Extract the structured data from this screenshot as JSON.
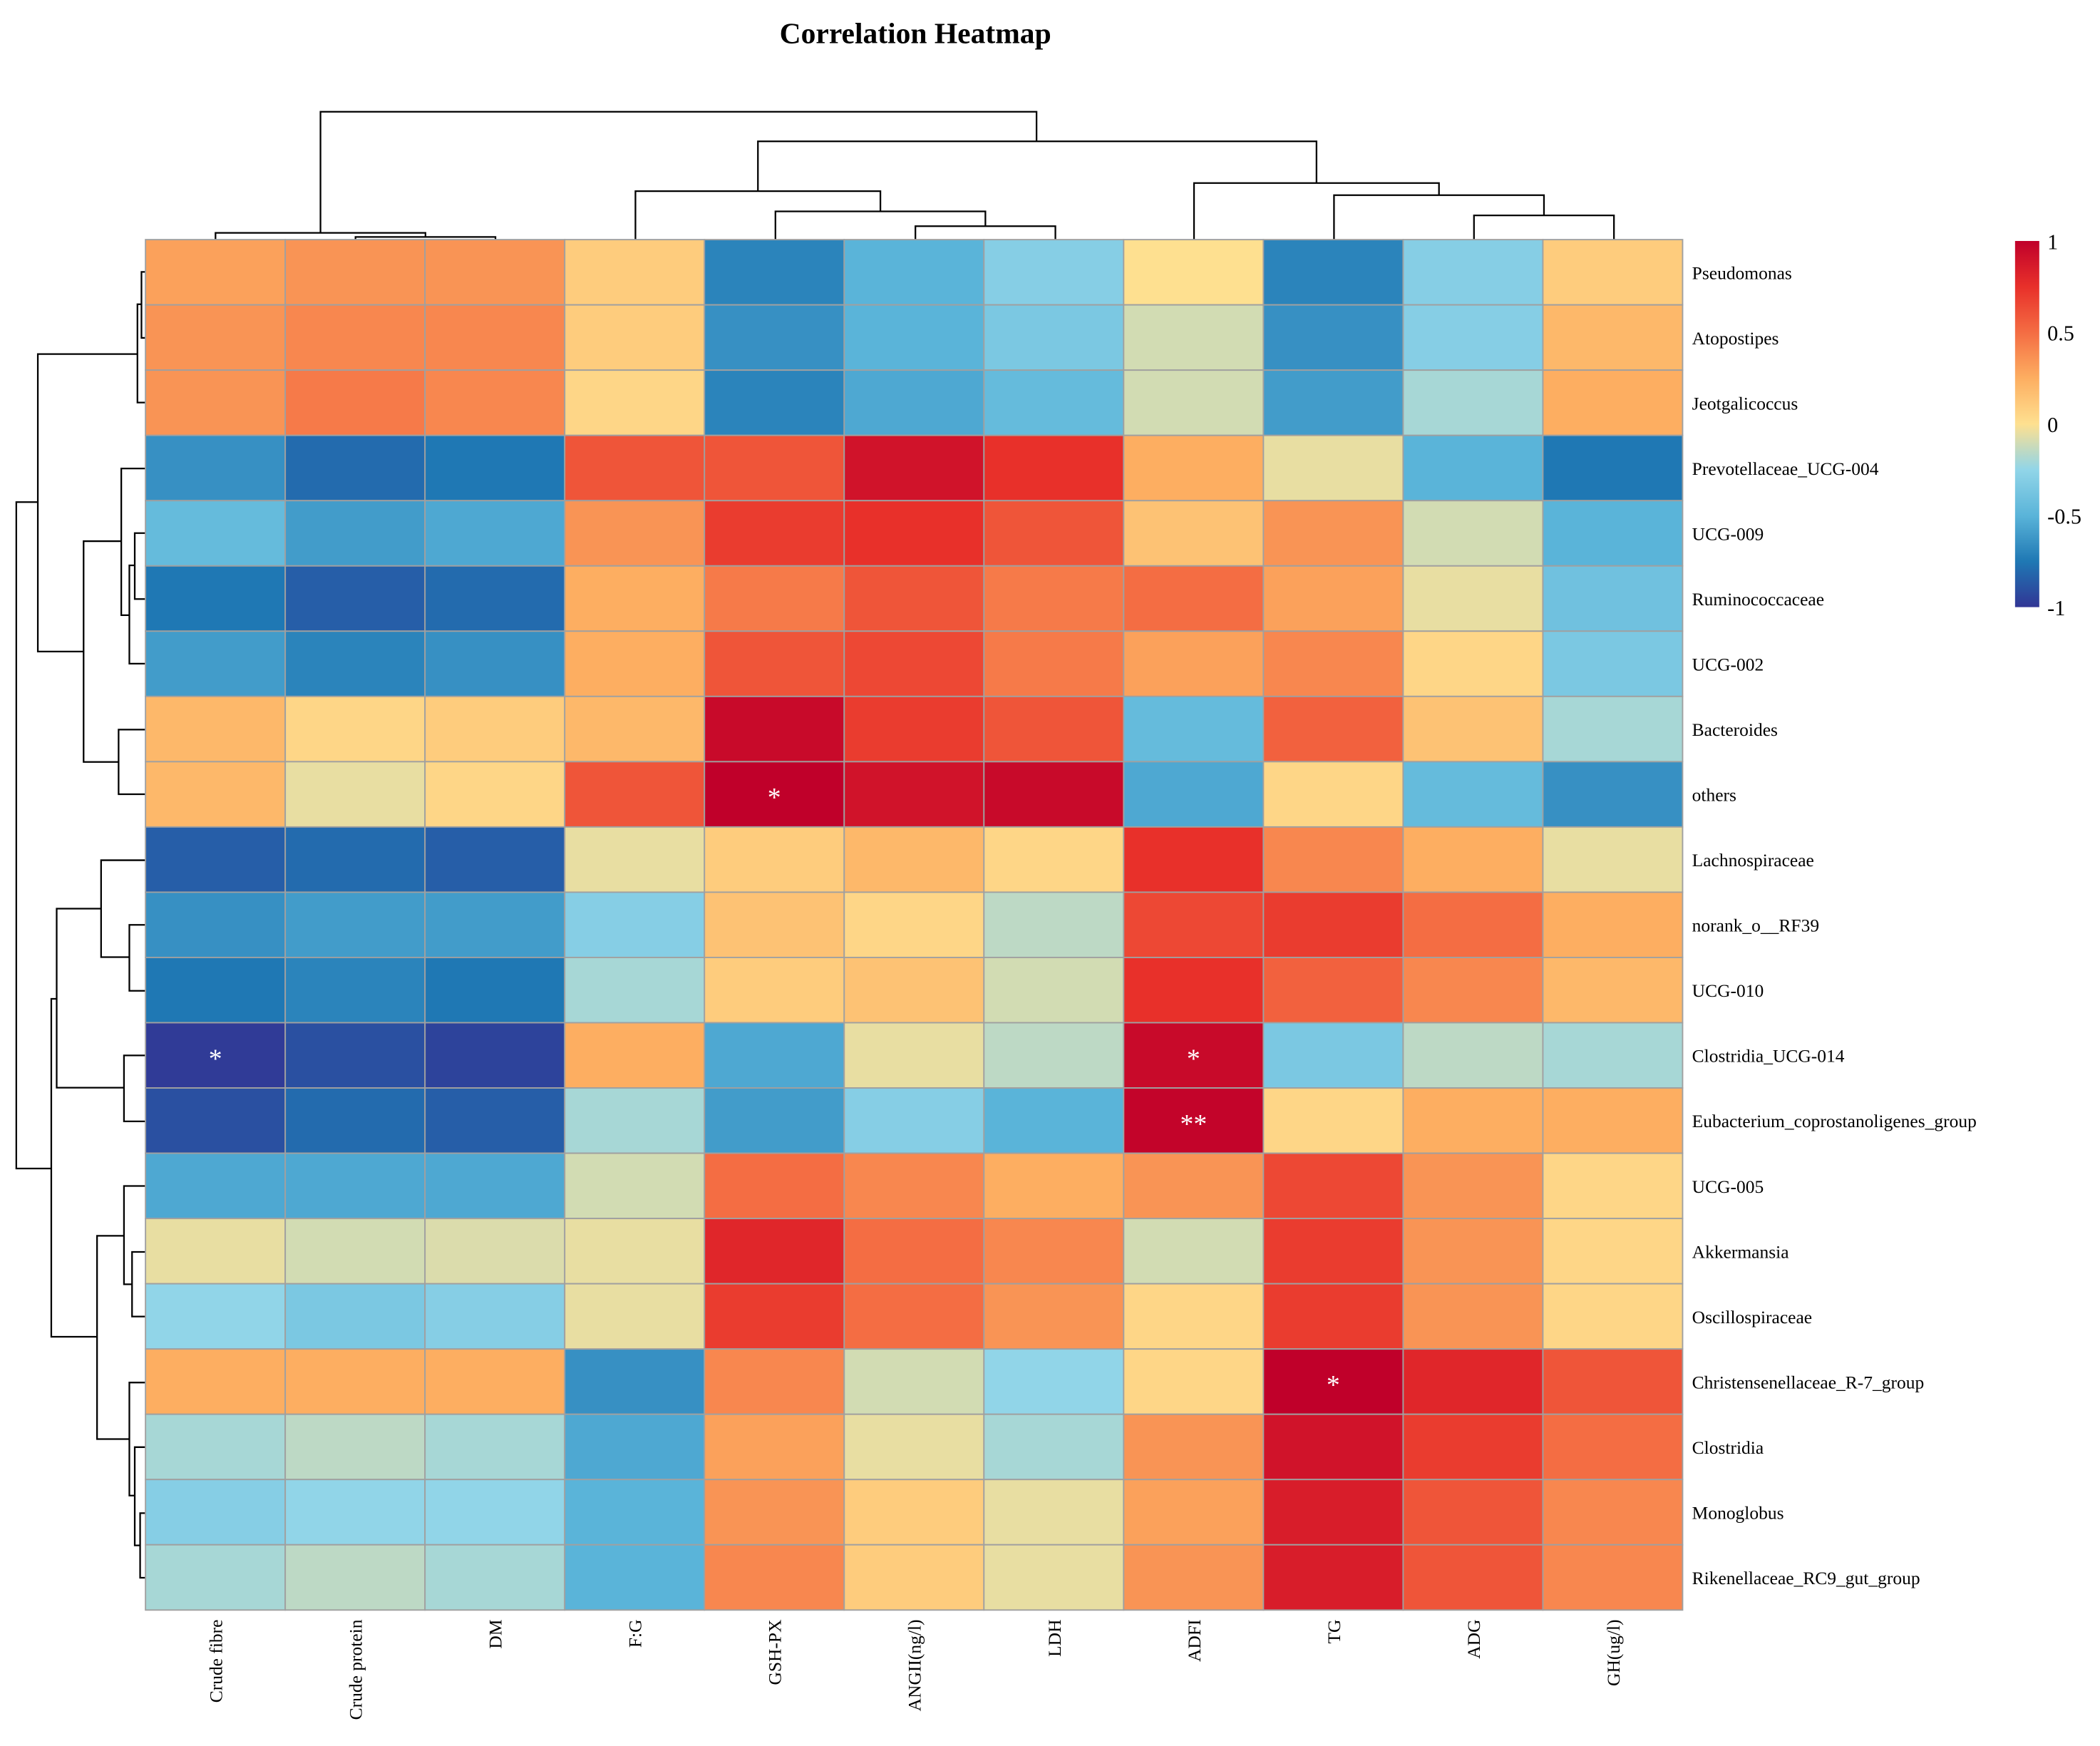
{
  "chart_data": {
    "type": "heatmap",
    "title": "Correlation Heatmap",
    "columns": [
      "Crude fibre",
      "Crude protein",
      "DM",
      "F:G",
      "GSH-PX",
      "ANGII(ng/l)",
      "LDH",
      "ADFI",
      "TG",
      "ADG",
      "GH(ug/l)"
    ],
    "rows": [
      "Pseudomonas",
      "Atopostipes",
      "Jeotgalicoccus",
      "Prevotellaceae_UCG-004",
      "UCG-009",
      "Ruminococcaceae",
      "UCG-002",
      "Bacteroides",
      "others",
      "Lachnospiraceae",
      "norank_o__RF39",
      "UCG-010",
      "Clostridia_UCG-014",
      "Eubacterium_coprostanoligenes_group",
      "UCG-005",
      "Akkermansia",
      "Oscillospiraceae",
      "Christensenellaceae_R-7_group",
      "Clostridia",
      "Monoglobus",
      "Rikenellaceae_RC9_gut_group"
    ],
    "values": [
      [
        0.3,
        0.35,
        0.35,
        0.1,
        -0.7,
        -0.5,
        -0.3,
        0.0,
        -0.7,
        -0.3,
        0.1
      ],
      [
        0.35,
        0.4,
        0.4,
        0.1,
        -0.65,
        -0.5,
        -0.35,
        -0.1,
        -0.65,
        -0.3,
        0.2
      ],
      [
        0.35,
        0.45,
        0.4,
        0.05,
        -0.7,
        -0.55,
        -0.45,
        -0.1,
        -0.6,
        -0.2,
        0.25
      ],
      [
        -0.65,
        -0.8,
        -0.75,
        0.6,
        0.6,
        0.9,
        0.75,
        0.25,
        -0.05,
        -0.5,
        -0.75
      ],
      [
        -0.45,
        -0.6,
        -0.55,
        0.35,
        0.7,
        0.75,
        0.6,
        0.15,
        0.35,
        -0.1,
        -0.5
      ],
      [
        -0.75,
        -0.85,
        -0.8,
        0.25,
        0.45,
        0.6,
        0.45,
        0.5,
        0.3,
        -0.05,
        -0.4
      ],
      [
        -0.6,
        -0.7,
        -0.65,
        0.25,
        0.6,
        0.65,
        0.45,
        0.3,
        0.4,
        0.05,
        -0.35
      ],
      [
        0.2,
        0.05,
        0.1,
        0.2,
        0.95,
        0.7,
        0.6,
        -0.45,
        0.55,
        0.15,
        -0.2
      ],
      [
        0.2,
        -0.05,
        0.05,
        0.6,
        1.0,
        0.9,
        0.95,
        -0.55,
        0.05,
        -0.45,
        -0.65
      ],
      [
        -0.85,
        -0.8,
        -0.85,
        -0.05,
        0.1,
        0.2,
        0.05,
        0.75,
        0.4,
        0.25,
        -0.05
      ],
      [
        -0.65,
        -0.6,
        -0.6,
        -0.3,
        0.15,
        0.05,
        -0.15,
        0.65,
        0.7,
        0.5,
        0.25
      ],
      [
        -0.75,
        -0.7,
        -0.75,
        -0.2,
        0.1,
        0.15,
        -0.1,
        0.75,
        0.55,
        0.4,
        0.2
      ],
      [
        -0.98,
        -0.9,
        -0.95,
        0.25,
        -0.55,
        -0.05,
        -0.15,
        0.95,
        -0.35,
        -0.15,
        -0.2
      ],
      [
        -0.9,
        -0.8,
        -0.85,
        -0.2,
        -0.6,
        -0.3,
        -0.5,
        0.98,
        0.05,
        0.25,
        0.25
      ],
      [
        -0.55,
        -0.55,
        -0.55,
        -0.1,
        0.5,
        0.4,
        0.25,
        0.35,
        0.65,
        0.35,
        0.05
      ],
      [
        -0.05,
        -0.1,
        -0.08,
        -0.05,
        0.8,
        0.5,
        0.4,
        -0.1,
        0.7,
        0.35,
        0.05
      ],
      [
        -0.25,
        -0.35,
        -0.3,
        -0.05,
        0.7,
        0.5,
        0.35,
        0.05,
        0.7,
        0.35,
        0.05
      ],
      [
        0.25,
        0.25,
        0.25,
        -0.65,
        0.4,
        -0.1,
        -0.25,
        0.05,
        1.0,
        0.8,
        0.6
      ],
      [
        -0.2,
        -0.15,
        -0.2,
        -0.55,
        0.3,
        -0.05,
        -0.2,
        0.35,
        0.9,
        0.7,
        0.5
      ],
      [
        -0.3,
        -0.25,
        -0.25,
        -0.5,
        0.35,
        0.1,
        -0.05,
        0.3,
        0.85,
        0.6,
        0.4
      ],
      [
        -0.2,
        -0.15,
        -0.2,
        -0.5,
        0.4,
        0.1,
        -0.05,
        0.35,
        0.85,
        0.6,
        0.4
      ]
    ],
    "significance": [
      {
        "row": "others",
        "column": "GSH-PX",
        "mark": "*"
      },
      {
        "row": "Clostridia_UCG-014",
        "column": "Crude fibre",
        "mark": "*"
      },
      {
        "row": "Clostridia_UCG-014",
        "column": "ADFI",
        "mark": "*"
      },
      {
        "row": "Eubacterium_coprostanoligenes_group",
        "column": "ADFI",
        "mark": "**"
      },
      {
        "row": "Christensenellaceae_R-7_group",
        "column": "TG",
        "mark": "*"
      }
    ],
    "colorbar": {
      "range": [
        -1,
        1
      ],
      "ticks": [
        "1",
        "0.5",
        "0",
        "-0.5",
        "-1"
      ],
      "tick_values": [
        1,
        0.5,
        0,
        -0.5,
        -1
      ],
      "stops": [
        "#313695",
        "#1f78b4",
        "#5ab4d9",
        "#91d5e8",
        "#fee090",
        "#fdae61",
        "#f46d43",
        "#e8302a",
        "#c0002a"
      ]
    },
    "legend_placement": "right"
  }
}
